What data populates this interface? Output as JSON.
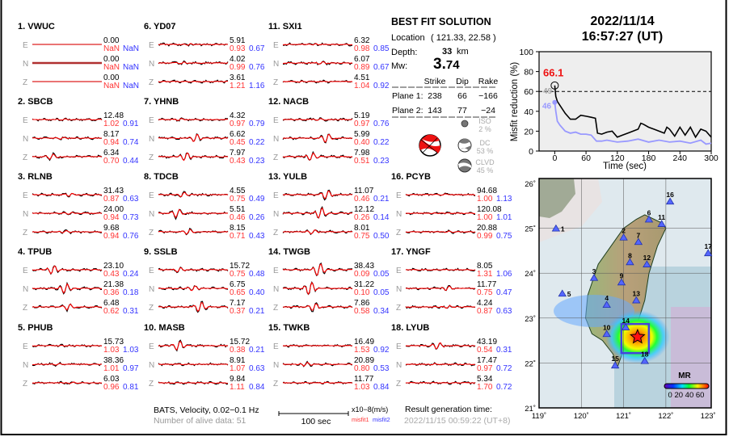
{
  "header": {
    "date": "2022/11/14",
    "time": "16:57:27  (UT)"
  },
  "solution": {
    "title": "BEST FIT SOLUTION",
    "location_label": "Location",
    "location_value": "( 121.33,  22.58 )",
    "depth_label": "Depth:",
    "depth_value": "33",
    "depth_unit": "km",
    "mw_label": "Mw:",
    "mw_int": "3.",
    "mw_frac": "74",
    "columns": [
      "Strike",
      "Dip",
      "Rake"
    ],
    "planes": [
      {
        "label": "Plane 1:",
        "strike": "238",
        "dip": "66",
        "rake": "−166"
      },
      {
        "label": "Plane 2:",
        "strike": "143",
        "dip": "77",
        "rake": "−24"
      }
    ],
    "components": [
      {
        "name": "ISO",
        "pct": "2  %"
      },
      {
        "name": "DC",
        "pct": "53 %"
      },
      {
        "name": "CLVD",
        "pct": "45 %"
      }
    ],
    "beachball_color": "#ee1111"
  },
  "stations": [
    {
      "title": "1.  VWUC",
      "rows": [
        [
          "E",
          "0.00",
          "NaN",
          "NaN"
        ],
        [
          "N",
          "0.00",
          "NaN",
          "NaN"
        ],
        [
          "Z",
          "0.00",
          "NaN",
          "NaN"
        ]
      ]
    },
    {
      "title": "2.  SBCB",
      "rows": [
        [
          "E",
          "12.48",
          "1.02",
          "0.91"
        ],
        [
          "N",
          "8.17",
          "0.94",
          "0.74"
        ],
        [
          "Z",
          "6.34",
          "0.70",
          "0.44"
        ]
      ]
    },
    {
      "title": "3.  RLNB",
      "rows": [
        [
          "E",
          "31.43",
          "0.87",
          "0.63"
        ],
        [
          "N",
          "24.00",
          "0.94",
          "0.73"
        ],
        [
          "Z",
          "9.68",
          "0.94",
          "0.76"
        ]
      ]
    },
    {
      "title": "4.  TPUB",
      "rows": [
        [
          "E",
          "23.10",
          "0.43",
          "0.24"
        ],
        [
          "N",
          "21.38",
          "0.36",
          "0.18"
        ],
        [
          "Z",
          "6.48",
          "0.62",
          "0.31"
        ]
      ]
    },
    {
      "title": "5.  PHUB",
      "rows": [
        [
          "E",
          "15.73",
          "1.03",
          "1.03"
        ],
        [
          "N",
          "38.36",
          "1.01",
          "0.97"
        ],
        [
          "Z",
          "6.03",
          "0.96",
          "0.81"
        ]
      ]
    },
    {
      "title": "6.  YD07",
      "rows": [
        [
          "E",
          "5.91",
          "0.93",
          "0.67"
        ],
        [
          "N",
          "4.02",
          "0.99",
          "0.76"
        ],
        [
          "Z",
          "3.61",
          "1.21",
          "1.16"
        ]
      ]
    },
    {
      "title": "7.  YHNB",
      "rows": [
        [
          "E",
          "4.32",
          "0.97",
          "0.79"
        ],
        [
          "N",
          "6.62",
          "0.45",
          "0.22"
        ],
        [
          "Z",
          "7.97",
          "0.43",
          "0.23"
        ]
      ]
    },
    {
      "title": "8.  TDCB",
      "rows": [
        [
          "E",
          "4.55",
          "0.75",
          "0.49"
        ],
        [
          "N",
          "5.51",
          "0.46",
          "0.26"
        ],
        [
          "Z",
          "8.15",
          "0.71",
          "0.43"
        ]
      ]
    },
    {
      "title": "9.  SSLB",
      "rows": [
        [
          "E",
          "15.72",
          "0.75",
          "0.48"
        ],
        [
          "N",
          "6.75",
          "0.65",
          "0.40"
        ],
        [
          "Z",
          "7.17",
          "0.37",
          "0.21"
        ]
      ]
    },
    {
      "title": "10. MASB",
      "rows": [
        [
          "E",
          "15.72",
          "0.38",
          "0.21"
        ],
        [
          "N",
          "8.91",
          "1.07",
          "0.63"
        ],
        [
          "Z",
          "9.84",
          "1.11",
          "0.84"
        ]
      ]
    },
    {
      "title": "11. SXI1",
      "rows": [
        [
          "E",
          "6.32",
          "0.98",
          "0.85"
        ],
        [
          "N",
          "6.07",
          "0.89",
          "0.67"
        ],
        [
          "Z",
          "4.51",
          "1.04",
          "0.92"
        ]
      ]
    },
    {
      "title": "12. NACB",
      "rows": [
        [
          "E",
          "5.19",
          "0.97",
          "0.76"
        ],
        [
          "N",
          "5.99",
          "0.40",
          "0.22"
        ],
        [
          "Z",
          "7.98",
          "0.51",
          "0.23"
        ]
      ]
    },
    {
      "title": "13. YULB",
      "rows": [
        [
          "E",
          "11.07",
          "0.46",
          "0.21"
        ],
        [
          "N",
          "12.12",
          "0.26",
          "0.14"
        ],
        [
          "Z",
          "8.01",
          "0.75",
          "0.50"
        ]
      ]
    },
    {
      "title": "14. TWGB",
      "rows": [
        [
          "E",
          "38.43",
          "0.09",
          "0.05"
        ],
        [
          "N",
          "31.22",
          "0.10",
          "0.05"
        ],
        [
          "Z",
          "7.86",
          "0.58",
          "0.34"
        ]
      ]
    },
    {
      "title": "15. TWKB",
      "rows": [
        [
          "E",
          "16.49",
          "1.53",
          "0.92"
        ],
        [
          "N",
          "20.89",
          "0.80",
          "0.53"
        ],
        [
          "Z",
          "11.77",
          "1.03",
          "0.84"
        ]
      ]
    },
    {
      "title": "16. PCYB",
      "rows": [
        [
          "E",
          "94.68",
          "1.00",
          "1.13"
        ],
        [
          "N",
          "120.08",
          "1.00",
          "1.01"
        ],
        [
          "Z",
          "20.88",
          "0.99",
          "0.75"
        ]
      ]
    },
    {
      "title": "17. YNGF",
      "rows": [
        [
          "E",
          "8.05",
          "1.31",
          "1.06"
        ],
        [
          "N",
          "11.77",
          "0.75",
          "0.47"
        ],
        [
          "Z",
          "4.24",
          "0.87",
          "0.63"
        ]
      ]
    },
    {
      "title": "18. LYUB",
      "rows": [
        [
          "E",
          "43.19",
          "0.54",
          "0.31"
        ],
        [
          "N",
          "17.47",
          "0.97",
          "0.72"
        ],
        [
          "Z",
          "5.34",
          "1.70",
          "0.72"
        ]
      ]
    }
  ],
  "footer": {
    "network": "BATS, Velocity, 0.02−0.1 Hz",
    "alive": "Number of alive data: 51",
    "scale_label": "100 sec",
    "units": "x10−8(m/s)",
    "misfit1": "misfit1",
    "misfit2": "misfit2",
    "gen_label": "Result generation time:",
    "gen_time": "2022/11/15 00:59:22 (UT+8)"
  },
  "colors": {
    "observed": "#000000",
    "synthetic": "#ff0000",
    "misfit1": "#ff3333",
    "misfit2": "#3333ff",
    "label_grey": "#888888"
  },
  "chart_data": {
    "type": "line",
    "xlabel": "Time (sec)",
    "ylabel": "Misfit reduction (%)",
    "xlim": [
      -30,
      300
    ],
    "ylim": [
      0,
      100
    ],
    "xticks": [
      0,
      60,
      120,
      180,
      240,
      300
    ],
    "yticks": [
      0,
      20,
      40,
      60,
      80,
      100
    ],
    "threshold": 60,
    "peak_label": "66.1",
    "black_label": "49",
    "blue_label": "46",
    "series": [
      {
        "color": "#000000",
        "x": [
          0,
          2,
          5,
          10,
          20,
          30,
          40,
          50,
          60,
          70,
          78,
          82,
          90,
          100,
          110,
          120,
          130,
          140,
          150,
          160,
          165,
          170,
          180,
          190,
          200,
          210,
          215,
          220,
          230,
          240,
          250,
          260,
          270,
          280,
          290,
          300
        ],
        "y": [
          66,
          55,
          50,
          46,
          38,
          32,
          32,
          36,
          35,
          34,
          33,
          18,
          17,
          19,
          20,
          14,
          16,
          18,
          20,
          22,
          28,
          27,
          24,
          22,
          20,
          18,
          24,
          22,
          15,
          24,
          16,
          24,
          14,
          22,
          20,
          14
        ]
      },
      {
        "color": "#9999ff",
        "x": [
          0,
          2,
          5,
          10,
          20,
          30,
          40,
          50,
          60,
          70,
          80,
          90,
          100,
          120,
          140,
          160,
          180,
          200,
          220,
          240,
          260,
          280,
          290,
          300
        ],
        "y": [
          49,
          40,
          30,
          26,
          20,
          18,
          19,
          17,
          17,
          16,
          10,
          10,
          11,
          9,
          10,
          12,
          9,
          11,
          9,
          10,
          8,
          11,
          7,
          8
        ]
      }
    ]
  },
  "map": {
    "lon_ticks": [
      "119˚",
      "120˚",
      "121˚",
      "122˚",
      "123˚"
    ],
    "lat_ticks": [
      "26˚",
      "25˚",
      "24˚",
      "23˚",
      "22˚",
      "21˚"
    ],
    "legend_title": "MR",
    "legend_ticks": "0 20 40 60",
    "event": {
      "lon": 121.33,
      "lat": 22.58
    },
    "stations": [
      {
        "id": "1",
        "lon": 119.4,
        "lat": 25.0
      },
      {
        "id": "2",
        "lon": 121.0,
        "lat": 24.8
      },
      {
        "id": "3",
        "lon": 120.3,
        "lat": 23.9
      },
      {
        "id": "4",
        "lon": 120.6,
        "lat": 23.3
      },
      {
        "id": "5",
        "lon": 119.55,
        "lat": 23.55
      },
      {
        "id": "6",
        "lon": 121.6,
        "lat": 25.2
      },
      {
        "id": "7",
        "lon": 121.35,
        "lat": 24.7
      },
      {
        "id": "8",
        "lon": 121.15,
        "lat": 24.25
      },
      {
        "id": "9",
        "lon": 120.95,
        "lat": 23.8
      },
      {
        "id": "10",
        "lon": 120.6,
        "lat": 22.65
      },
      {
        "id": "11",
        "lon": 121.9,
        "lat": 25.1
      },
      {
        "id": "12",
        "lon": 121.55,
        "lat": 24.2
      },
      {
        "id": "13",
        "lon": 121.3,
        "lat": 23.4
      },
      {
        "id": "14",
        "lon": 121.05,
        "lat": 22.8
      },
      {
        "id": "15",
        "lon": 120.8,
        "lat": 21.95
      },
      {
        "id": "16",
        "lon": 122.1,
        "lat": 25.6
      },
      {
        "id": "17",
        "lon": 123.0,
        "lat": 24.45
      },
      {
        "id": "18",
        "lon": 121.5,
        "lat": 22.05
      }
    ]
  }
}
